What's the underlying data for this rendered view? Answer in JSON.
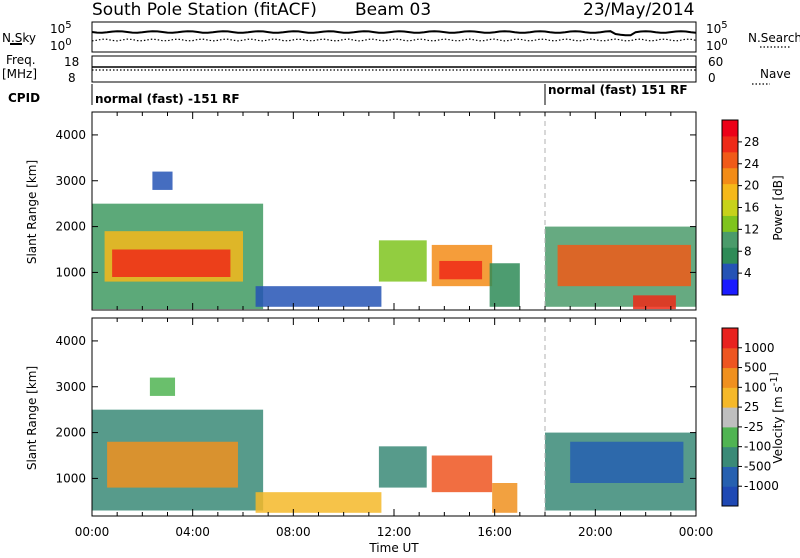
{
  "header": {
    "station": "South Pole Station (fitACF)",
    "beam": "Beam 03",
    "date": "23/May/2014"
  },
  "top_panels": {
    "nsky_label": "N.Sky",
    "nsearch_label": "N.Search",
    "freq_label_1": "Freq.",
    "freq_label_2": "[MHz]",
    "nave_label": "Nave",
    "cpid_label": "CPID",
    "noise_ticks_left": [
      "10^5",
      "10^0"
    ],
    "noise_ticks_right": [
      "10^5",
      "10^0"
    ],
    "freq_ticks_left": [
      "18",
      "8"
    ],
    "nave_ticks_right": [
      "60",
      "0"
    ],
    "cpid_segments": [
      {
        "start_hour": 0,
        "label": "normal (fast) -151 RF"
      },
      {
        "start_hour": 18,
        "label": "normal (fast) 151 RF"
      }
    ]
  },
  "axes": {
    "ylabel": "Slant Range [km]",
    "xlabel": "Time UT",
    "y_ticks": [
      "1000",
      "2000",
      "3000",
      "4000"
    ],
    "x_ticks": [
      "00:00",
      "04:00",
      "08:00",
      "12:00",
      "16:00",
      "20:00",
      "00:00"
    ]
  },
  "power_scale": {
    "label": "Power [dB]",
    "ticks": [
      "4",
      "8",
      "12",
      "16",
      "20",
      "24",
      "28"
    ],
    "colors": [
      "#1b1bff",
      "#2553b5",
      "#2e8b57",
      "#4b9b6b",
      "#7fc41e",
      "#c7d21a",
      "#f5b81a",
      "#f38c17",
      "#f05a18",
      "#ee2a18",
      "#ec0018"
    ]
  },
  "velocity_scale": {
    "label": "Velocity [m s^-1]",
    "ticks": [
      "1000",
      "500",
      "100",
      "25",
      "-25",
      "-100",
      "-500",
      "-1000"
    ],
    "colors": [
      "#1f49b4",
      "#2660b0",
      "#3a8a77",
      "#50b452",
      "#bfbfbf",
      "#f5b829",
      "#f0901e",
      "#ee5520",
      "#e8221f"
    ]
  },
  "chart_data": [
    {
      "type": "heatmap",
      "name": "Power",
      "x_range_hours": [
        0,
        24
      ],
      "y_range_km": [
        180,
        4500
      ],
      "cells": [
        {
          "t0": 0.0,
          "t1": 6.8,
          "r0": 200,
          "r1": 2500,
          "fill": "#3f9a62"
        },
        {
          "t0": 0.5,
          "t1": 6.0,
          "r0": 800,
          "r1": 1900,
          "fill": "#f5b81a"
        },
        {
          "t0": 0.8,
          "t1": 5.5,
          "r0": 900,
          "r1": 1500,
          "fill": "#ee2a18"
        },
        {
          "t0": 2.4,
          "t1": 3.2,
          "r0": 2800,
          "r1": 3200,
          "fill": "#2553b5"
        },
        {
          "t0": 6.5,
          "t1": 11.5,
          "r0": 250,
          "r1": 700,
          "fill": "#2553b5"
        },
        {
          "t0": 11.4,
          "t1": 13.3,
          "r0": 800,
          "r1": 1700,
          "fill": "#7fc41e"
        },
        {
          "t0": 13.5,
          "t1": 15.9,
          "r0": 700,
          "r1": 1600,
          "fill": "#f38c17"
        },
        {
          "t0": 13.8,
          "t1": 15.5,
          "r0": 850,
          "r1": 1250,
          "fill": "#ee2a18"
        },
        {
          "t0": 15.8,
          "t1": 17.0,
          "r0": 250,
          "r1": 1200,
          "fill": "#2e8b57"
        },
        {
          "t0": 18.0,
          "t1": 24.0,
          "r0": 250,
          "r1": 2000,
          "fill": "#4b9b6b"
        },
        {
          "t0": 18.5,
          "t1": 23.8,
          "r0": 700,
          "r1": 1600,
          "fill": "#f05a18"
        },
        {
          "t0": 21.5,
          "t1": 23.2,
          "r0": 200,
          "r1": 500,
          "fill": "#ee2a18"
        }
      ]
    },
    {
      "type": "heatmap",
      "name": "Velocity",
      "x_range_hours": [
        0,
        24
      ],
      "y_range_km": [
        180,
        4500
      ],
      "cells": [
        {
          "t0": 0.0,
          "t1": 6.8,
          "r0": 300,
          "r1": 2500,
          "fill": "#3a8a77"
        },
        {
          "t0": 0.6,
          "t1": 5.8,
          "r0": 800,
          "r1": 1800,
          "fill": "#f0901e"
        },
        {
          "t0": 2.3,
          "t1": 3.3,
          "r0": 2800,
          "r1": 3200,
          "fill": "#50b452"
        },
        {
          "t0": 6.5,
          "t1": 11.5,
          "r0": 250,
          "r1": 700,
          "fill": "#f5b829"
        },
        {
          "t0": 11.4,
          "t1": 13.3,
          "r0": 800,
          "r1": 1700,
          "fill": "#3a8a77"
        },
        {
          "t0": 13.5,
          "t1": 15.9,
          "r0": 700,
          "r1": 1500,
          "fill": "#ee5520"
        },
        {
          "t0": 15.9,
          "t1": 16.9,
          "r0": 250,
          "r1": 900,
          "fill": "#f0901e"
        },
        {
          "t0": 18.0,
          "t1": 24.0,
          "r0": 300,
          "r1": 2000,
          "fill": "#3a8a77"
        },
        {
          "t0": 19.0,
          "t1": 23.5,
          "r0": 900,
          "r1": 1800,
          "fill": "#2660b0"
        }
      ]
    }
  ]
}
